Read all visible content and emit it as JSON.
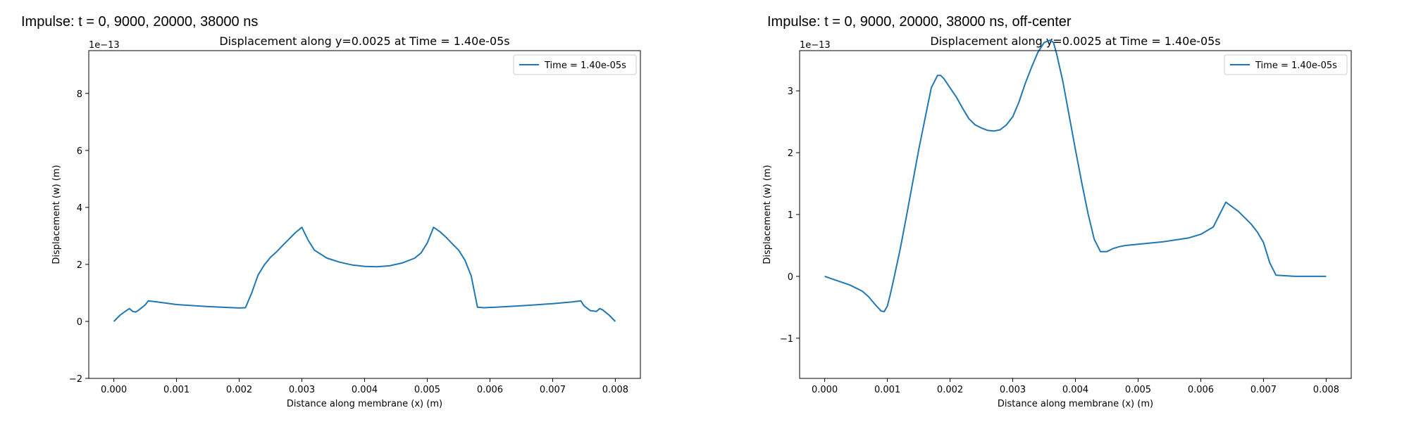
{
  "panels": [
    {
      "figure_title": "Impulse: t = 0, 9000, 20000, 38000 ns"
    },
    {
      "figure_title": "Impulse: t = 0, 9000, 20000, 38000 ns, off-center"
    }
  ],
  "chart_data": [
    {
      "type": "line",
      "title": "Displacement along y=0.0025 at Time = 1.40e-05s",
      "xlabel": "Distance along membrane (x) (m)",
      "ylabel": "Displacement (w) (m)",
      "offset_label": "1e−13",
      "xlim": [
        -0.0004,
        0.0084
      ],
      "ylim": [
        -2,
        9.5
      ],
      "xticks": [
        0.0,
        0.001,
        0.002,
        0.003,
        0.004,
        0.005,
        0.006,
        0.007,
        0.008
      ],
      "xtick_labels": [
        "0.000",
        "0.001",
        "0.002",
        "0.003",
        "0.004",
        "0.005",
        "0.006",
        "0.007",
        "0.008"
      ],
      "yticks": [
        -2,
        0,
        2,
        4,
        6,
        8
      ],
      "ytick_labels": [
        "−2",
        "0",
        "2",
        "4",
        "6",
        "8"
      ],
      "grid": false,
      "legend_position": "top-right",
      "series": [
        {
          "name": "Time = 1.40e-05s",
          "color": "#1f77b4",
          "x": [
            0.0,
            0.0001,
            0.0002,
            0.00025,
            0.0003,
            0.00035,
            0.0004,
            0.0005,
            0.00055,
            0.0007,
            0.001,
            0.0015,
            0.0019,
            0.002,
            0.0021,
            0.0022,
            0.0023,
            0.0024,
            0.0025,
            0.0026,
            0.0027,
            0.0028,
            0.0029,
            0.003,
            0.0031,
            0.0032,
            0.0034,
            0.0036,
            0.0038,
            0.004,
            0.0042,
            0.0044,
            0.0046,
            0.0048,
            0.0049,
            0.005,
            0.0051,
            0.0052,
            0.0053,
            0.0054,
            0.0055,
            0.0056,
            0.0057,
            0.0058,
            0.0059,
            0.006,
            0.0061,
            0.0065,
            0.007,
            0.0073,
            0.00745,
            0.0075,
            0.0076,
            0.0077,
            0.00775,
            0.0078,
            0.0079,
            0.008
          ],
          "y": [
            0.0,
            0.22,
            0.38,
            0.45,
            0.35,
            0.33,
            0.4,
            0.58,
            0.72,
            0.68,
            0.59,
            0.52,
            0.48,
            0.47,
            0.48,
            1.0,
            1.62,
            1.98,
            2.25,
            2.45,
            2.68,
            2.9,
            3.12,
            3.3,
            2.85,
            2.5,
            2.22,
            2.08,
            1.98,
            1.93,
            1.92,
            1.95,
            2.05,
            2.22,
            2.4,
            2.75,
            3.3,
            3.15,
            2.95,
            2.72,
            2.5,
            2.15,
            1.6,
            0.5,
            0.48,
            0.49,
            0.5,
            0.55,
            0.62,
            0.68,
            0.72,
            0.55,
            0.38,
            0.35,
            0.45,
            0.4,
            0.22,
            0.0
          ]
        }
      ]
    },
    {
      "type": "line",
      "title": "Displacement along y=0.0025 at Time = 1.40e-05s",
      "xlabel": "Distance along membrane (x) (m)",
      "ylabel": "Displacement (w) (m)",
      "offset_label": "1e−13",
      "xlim": [
        -0.0004,
        0.0084
      ],
      "ylim": [
        -1.65,
        3.65
      ],
      "xticks": [
        0.0,
        0.001,
        0.002,
        0.003,
        0.004,
        0.005,
        0.006,
        0.007,
        0.008
      ],
      "xtick_labels": [
        "0.000",
        "0.001",
        "0.002",
        "0.003",
        "0.004",
        "0.005",
        "0.006",
        "0.007",
        "0.008"
      ],
      "yticks": [
        -1,
        0,
        1,
        2,
        3
      ],
      "ytick_labels": [
        "−1",
        "0",
        "1",
        "2",
        "3"
      ],
      "grid": false,
      "legend_position": "top-right",
      "series": [
        {
          "name": "Time = 1.40e-05s",
          "color": "#1f77b4",
          "x": [
            0.0,
            0.0002,
            0.0004,
            0.0006,
            0.0007,
            0.0008,
            0.0009,
            0.00095,
            0.001,
            0.00105,
            0.0011,
            0.0012,
            0.0013,
            0.0014,
            0.0015,
            0.0016,
            0.0017,
            0.0018,
            0.00185,
            0.0019,
            0.002,
            0.0021,
            0.0022,
            0.0023,
            0.0024,
            0.0025,
            0.0026,
            0.0027,
            0.0028,
            0.0029,
            0.003,
            0.0031,
            0.0032,
            0.0033,
            0.0034,
            0.0035,
            0.0036,
            0.00365,
            0.0037,
            0.0038,
            0.0039,
            0.004,
            0.0041,
            0.0042,
            0.0043,
            0.0044,
            0.0045,
            0.0046,
            0.0047,
            0.0048,
            0.005,
            0.0054,
            0.0058,
            0.006,
            0.0062,
            0.0063,
            0.00635,
            0.0064,
            0.0066,
            0.0068,
            0.0069,
            0.007,
            0.0071,
            0.0072,
            0.0075,
            0.008
          ],
          "y": [
            0.0,
            -0.07,
            -0.14,
            -0.24,
            -0.33,
            -0.45,
            -0.56,
            -0.57,
            -0.48,
            -0.28,
            -0.05,
            0.42,
            0.95,
            1.5,
            2.05,
            2.55,
            3.05,
            3.25,
            3.25,
            3.2,
            3.05,
            2.9,
            2.72,
            2.55,
            2.45,
            2.4,
            2.36,
            2.35,
            2.37,
            2.45,
            2.58,
            2.82,
            3.12,
            3.38,
            3.62,
            3.78,
            3.82,
            3.78,
            3.6,
            3.15,
            2.6,
            2.05,
            1.52,
            1.02,
            0.6,
            0.4,
            0.4,
            0.45,
            0.48,
            0.5,
            0.52,
            0.56,
            0.62,
            0.68,
            0.8,
            1.0,
            1.1,
            1.2,
            1.05,
            0.85,
            0.72,
            0.55,
            0.22,
            0.02,
            0.0,
            0.0
          ]
        }
      ]
    }
  ]
}
